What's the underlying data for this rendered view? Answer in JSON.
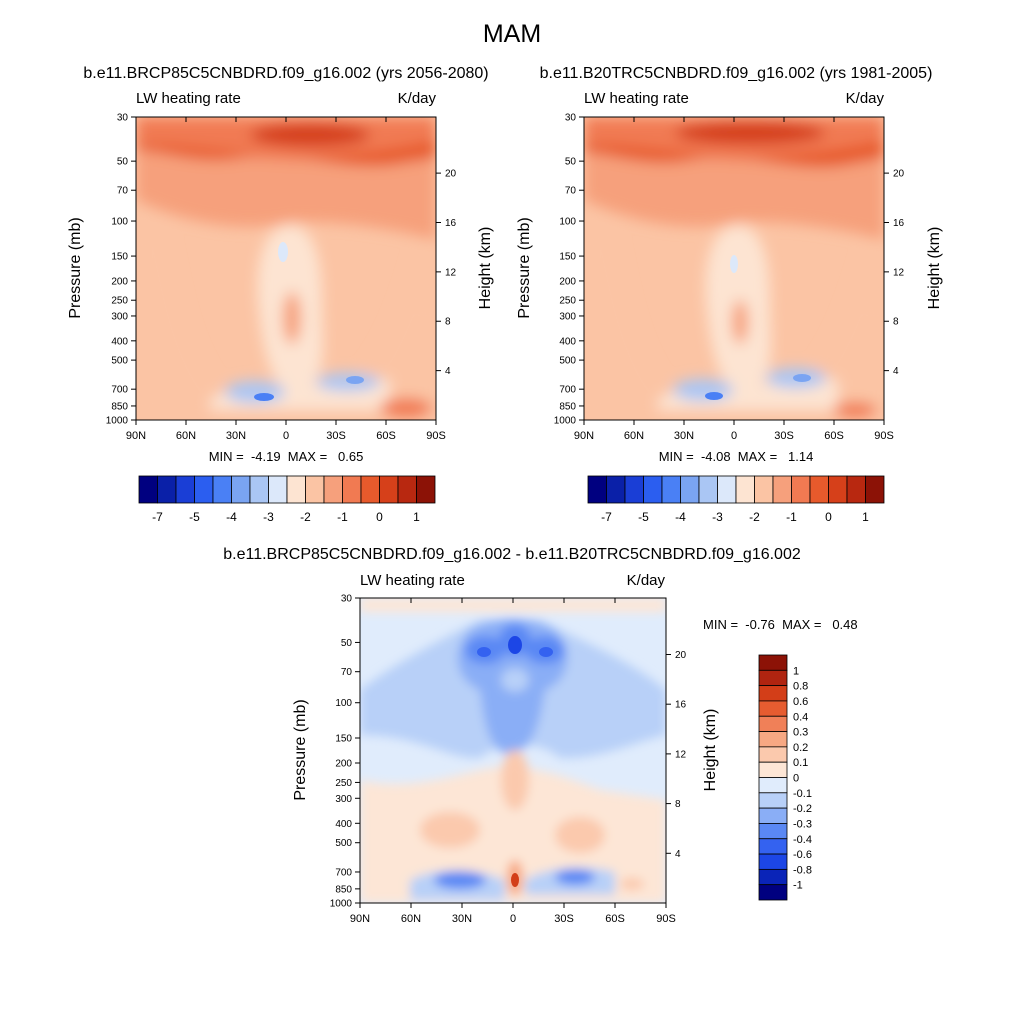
{
  "figure": {
    "title": "MAM",
    "top_left_title": "b.e11.BRCP85C5CNBDRD.f09_g16.002 (yrs 2056-2080)",
    "top_right_title": "b.e11.B20TRC5CNBDRD.f09_g16.002 (yrs 1981-2005)",
    "bottom_title": "b.e11.BRCP85C5CNBDRD.f09_g16.002 - b.e11.B20TRC5CNBDRD.f09_g16.002"
  },
  "colors": {
    "main_scale": [
      "#000080",
      "#0a20a8",
      "#1a3ed6",
      "#2b5ef0",
      "#4a80f5",
      "#7aa4f2",
      "#aac6f4",
      "#dce8fa",
      "#fde4d2",
      "#fbc4a4",
      "#f6a07c",
      "#f17a52",
      "#e75a2c",
      "#d6401a",
      "#b82810",
      "#8c1206"
    ],
    "diff_scale": [
      "#000080",
      "#0a24b8",
      "#1c46e6",
      "#3462f0",
      "#5a88f4",
      "#8aaef6",
      "#b8d0f8",
      "#e0ecfc",
      "#fde6d6",
      "#fbc9ad",
      "#f7a883",
      "#f08058",
      "#e65c30",
      "#d33e18",
      "#b02410",
      "#8c1206"
    ]
  },
  "chart_data": [
    {
      "type": "contour",
      "panel": "top-left",
      "title": "b.e11.BRCP85C5CNBDRD.f09_g16.002 (yrs 2056-2080)",
      "left_string": "LW heating rate",
      "right_string": "K/day",
      "ylabel": "Pressure (mb)",
      "ylabel_right": "Height (km)",
      "x_ticks": [
        "90N",
        "60N",
        "30N",
        "0",
        "30S",
        "60S",
        "90S"
      ],
      "y_ticks": [
        "30",
        "50",
        "70",
        "100",
        "150",
        "200",
        "250",
        "300",
        "400",
        "500",
        "700",
        "850",
        "1000"
      ],
      "y_right_ticks": [
        "20",
        "16",
        "12",
        "8",
        "4"
      ],
      "y_log_scale": true,
      "ylim": [
        1000,
        30
      ],
      "xlim": [
        90,
        -90
      ],
      "stats": "MIN =  -4.19  MAX =   0.65",
      "colorbar_labels": [
        "-7",
        "-5",
        "-4",
        "-3",
        "-2",
        "-1",
        "0",
        "1"
      ],
      "colorbar_orientation": "horizontal"
    },
    {
      "type": "contour",
      "panel": "top-right",
      "title": "b.e11.B20TRC5CNBDRD.f09_g16.002 (yrs 1981-2005)",
      "left_string": "LW heating rate",
      "right_string": "K/day",
      "ylabel": "Pressure (mb)",
      "ylabel_right": "Height (km)",
      "x_ticks": [
        "90N",
        "60N",
        "30N",
        "0",
        "30S",
        "60S",
        "90S"
      ],
      "y_ticks": [
        "30",
        "50",
        "70",
        "100",
        "150",
        "200",
        "250",
        "300",
        "400",
        "500",
        "700",
        "850",
        "1000"
      ],
      "y_right_ticks": [
        "20",
        "16",
        "12",
        "8",
        "4"
      ],
      "y_log_scale": true,
      "ylim": [
        1000,
        30
      ],
      "xlim": [
        90,
        -90
      ],
      "stats": "MIN =  -4.08  MAX =   1.14",
      "colorbar_labels": [
        "-7",
        "-5",
        "-4",
        "-3",
        "-2",
        "-1",
        "0",
        "1"
      ],
      "colorbar_orientation": "horizontal"
    },
    {
      "type": "contour",
      "panel": "bottom",
      "title": "b.e11.BRCP85C5CNBDRD.f09_g16.002 - b.e11.B20TRC5CNBDRD.f09_g16.002",
      "left_string": "LW heating rate",
      "right_string": "K/day",
      "ylabel": "Pressure (mb)",
      "ylabel_right": "Height (km)",
      "x_ticks": [
        "90N",
        "60N",
        "30N",
        "0",
        "30S",
        "60S",
        "90S"
      ],
      "y_ticks": [
        "30",
        "50",
        "70",
        "100",
        "150",
        "200",
        "250",
        "300",
        "400",
        "500",
        "700",
        "850",
        "1000"
      ],
      "y_right_ticks": [
        "20",
        "16",
        "12",
        "8",
        "4"
      ],
      "y_log_scale": true,
      "ylim": [
        1000,
        30
      ],
      "xlim": [
        90,
        -90
      ],
      "stats": "MIN =  -0.76  MAX =   0.48",
      "colorbar_labels": [
        "1",
        "0.8",
        "0.6",
        "0.4",
        "0.3",
        "0.2",
        "0.1",
        "0",
        "-0.1",
        "-0.2",
        "-0.3",
        "-0.4",
        "-0.6",
        "-0.8",
        "-1"
      ],
      "colorbar_orientation": "vertical"
    }
  ]
}
